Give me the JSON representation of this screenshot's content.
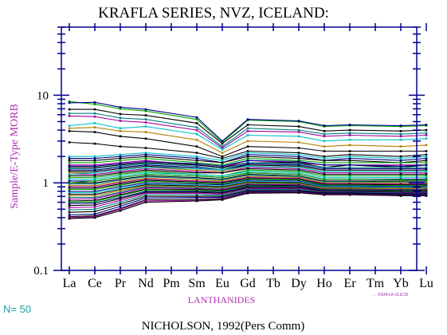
{
  "chart_data": {
    "type": "line",
    "title": "KRAFLA SERIES, NVZ, ICELAND:",
    "ylabel": "Sample/E-Type MORB",
    "xlabel": "LANTHANIDES",
    "yscale": "log",
    "ylim": [
      0.1,
      60
    ],
    "ytick_labels": [
      "0.1",
      "1",
      "10"
    ],
    "ytick_values": [
      0.1,
      1,
      10
    ],
    "categories": [
      "La",
      "Ce",
      "Pr",
      "Nd",
      "Pm",
      "Sm",
      "Eu",
      "Gd",
      "Tb",
      "Dy",
      "Ho",
      "Er",
      "Tm",
      "Yb",
      "Lu"
    ],
    "n_label": "N= 50",
    "source": "NICHOLSON, 1992(Pers Comm)",
    "legend_text": "← KRAFLA-ULECB",
    "colors": {
      "axis": "#00008b",
      "title": "#000000",
      "ylabel": "#b030b0",
      "xlabel": "#b030b0",
      "tick_text": "#000000",
      "n_label": "#20a0a0",
      "legend": "#b030b0"
    },
    "series": [
      {
        "color": "#00a000",
        "values": [
          8.5,
          7.9,
          7.0,
          6.6,
          null,
          5.3,
          2.9,
          5.2,
          null,
          5.0,
          4.4,
          4.5,
          null,
          4.4,
          4.5
        ]
      },
      {
        "color": "#00008b",
        "values": [
          8.2,
          8.3,
          7.3,
          6.9,
          null,
          5.6,
          3.0,
          5.3,
          null,
          5.1,
          4.5,
          4.6,
          null,
          4.5,
          4.6
        ]
      },
      {
        "color": "#000000",
        "values": [
          6.9,
          6.9,
          6.1,
          5.9,
          null,
          4.8,
          2.8,
          4.6,
          null,
          4.4,
          3.9,
          4.0,
          null,
          3.9,
          4.0
        ]
      },
      {
        "color": "#008080",
        "values": [
          6.2,
          6.2,
          5.5,
          5.3,
          null,
          4.3,
          2.6,
          4.2,
          null,
          4.0,
          3.6,
          3.7,
          null,
          3.6,
          3.7
        ]
      },
      {
        "color": "#a000a0",
        "values": [
          5.8,
          5.7,
          5.1,
          4.9,
          null,
          4.0,
          2.5,
          3.9,
          null,
          3.8,
          3.4,
          3.5,
          null,
          3.4,
          3.5
        ]
      },
      {
        "color": "#00c0c0",
        "values": [
          4.5,
          4.8,
          4.2,
          4.4,
          null,
          3.6,
          2.4,
          3.5,
          null,
          3.4,
          3.0,
          3.1,
          null,
          3.1,
          3.2
        ]
      },
      {
        "color": "#b08000",
        "values": [
          4.2,
          4.3,
          3.9,
          3.8,
          null,
          3.1,
          2.2,
          3.0,
          null,
          2.9,
          2.6,
          2.7,
          null,
          2.6,
          2.7
        ]
      },
      {
        "color": "#000000",
        "values": [
          3.9,
          3.8,
          3.4,
          3.2,
          null,
          2.6,
          2.0,
          2.6,
          null,
          2.5,
          2.3,
          2.3,
          null,
          2.3,
          2.3
        ]
      },
      {
        "color": "#000000",
        "values": [
          2.9,
          2.8,
          2.6,
          2.5,
          null,
          2.2,
          1.9,
          2.3,
          null,
          2.2,
          2.0,
          2.1,
          null,
          2.0,
          2.1
        ]
      },
      {
        "color": "#00c0c0",
        "values": [
          2.0,
          2.0,
          2.1,
          2.2,
          null,
          2.0,
          1.8,
          2.2,
          null,
          2.1,
          1.9,
          2.0,
          null,
          1.9,
          2.0
        ]
      },
      {
        "color": "#00008b",
        "values": [
          1.9,
          1.9,
          2.0,
          2.1,
          null,
          1.9,
          1.7,
          2.1,
          null,
          2.0,
          1.8,
          1.9,
          null,
          1.8,
          1.9
        ]
      },
      {
        "color": "#000000",
        "values": [
          1.8,
          1.8,
          1.9,
          2.0,
          null,
          1.8,
          1.7,
          2.0,
          null,
          1.9,
          1.8,
          1.8,
          null,
          1.7,
          1.8
        ]
      },
      {
        "color": "#00a000",
        "values": [
          1.7,
          1.7,
          1.8,
          1.9,
          null,
          1.7,
          1.6,
          1.9,
          null,
          1.8,
          1.7,
          1.7,
          null,
          1.7,
          1.7
        ]
      },
      {
        "color": "#a000a0",
        "values": [
          1.6,
          1.6,
          1.7,
          1.8,
          null,
          1.6,
          1.5,
          1.8,
          null,
          1.7,
          1.6,
          1.6,
          null,
          1.6,
          1.6
        ]
      },
      {
        "color": "#000000",
        "values": [
          1.5,
          1.5,
          1.6,
          1.7,
          null,
          1.6,
          1.5,
          1.7,
          null,
          1.7,
          1.5,
          1.6,
          null,
          1.5,
          1.6
        ]
      },
      {
        "color": "#008080",
        "values": [
          1.45,
          1.45,
          1.55,
          1.65,
          null,
          1.55,
          1.45,
          1.7,
          null,
          1.65,
          1.5,
          1.5,
          null,
          1.5,
          1.5
        ]
      },
      {
        "color": "#00008b",
        "values": [
          1.4,
          1.4,
          1.5,
          1.6,
          null,
          1.5,
          1.4,
          1.65,
          null,
          1.6,
          1.45,
          1.45,
          null,
          1.45,
          1.45
        ]
      },
      {
        "color": "#000000",
        "values": [
          1.35,
          1.35,
          1.45,
          1.55,
          null,
          1.45,
          1.4,
          1.6,
          null,
          1.55,
          1.4,
          1.4,
          null,
          1.4,
          1.4
        ]
      },
      {
        "color": "#b08000",
        "values": [
          1.3,
          1.3,
          1.4,
          1.5,
          null,
          1.4,
          1.35,
          1.55,
          null,
          1.5,
          1.35,
          1.35,
          null,
          1.35,
          1.35
        ]
      },
      {
        "color": "#a000a0",
        "values": [
          1.25,
          1.25,
          1.35,
          1.45,
          null,
          1.35,
          1.3,
          1.5,
          null,
          1.45,
          1.3,
          1.3,
          null,
          1.3,
          1.3
        ]
      },
      {
        "color": "#000000",
        "values": [
          1.2,
          1.2,
          1.3,
          1.4,
          null,
          1.3,
          1.3,
          1.45,
          null,
          1.4,
          1.25,
          1.25,
          null,
          1.25,
          1.25
        ]
      },
      {
        "color": "#00a000",
        "values": [
          1.15,
          1.15,
          1.25,
          1.35,
          null,
          1.25,
          1.2,
          1.4,
          null,
          1.35,
          1.2,
          1.2,
          null,
          1.2,
          1.2
        ]
      },
      {
        "color": "#00c0c0",
        "values": [
          1.1,
          1.1,
          1.2,
          1.3,
          null,
          1.25,
          1.2,
          1.35,
          null,
          1.3,
          1.15,
          1.15,
          null,
          1.15,
          1.15
        ]
      },
      {
        "color": "#00008b",
        "values": [
          1.05,
          1.05,
          1.15,
          1.25,
          null,
          1.2,
          1.15,
          1.3,
          null,
          1.25,
          1.1,
          1.1,
          null,
          1.1,
          1.1
        ]
      },
      {
        "color": "#000000",
        "values": [
          1.0,
          1.0,
          1.1,
          1.2,
          null,
          1.15,
          1.1,
          1.25,
          null,
          1.2,
          1.05,
          1.05,
          null,
          1.05,
          1.05
        ]
      },
      {
        "color": "#008080",
        "values": [
          0.97,
          0.97,
          1.07,
          1.17,
          null,
          1.12,
          1.08,
          1.22,
          null,
          1.18,
          1.03,
          1.03,
          null,
          1.02,
          1.02
        ]
      },
      {
        "color": "#b08000",
        "values": [
          0.93,
          0.93,
          1.03,
          1.13,
          null,
          1.08,
          1.05,
          1.18,
          null,
          1.15,
          1.0,
          1.0,
          null,
          1.0,
          1.0
        ]
      },
      {
        "color": "#a000a0",
        "values": [
          0.9,
          0.9,
          1.0,
          1.1,
          null,
          1.05,
          1.02,
          1.15,
          null,
          1.12,
          0.98,
          0.98,
          null,
          0.97,
          0.97
        ]
      },
      {
        "color": "#000000",
        "values": [
          0.87,
          0.87,
          0.97,
          1.07,
          null,
          1.02,
          1.0,
          1.12,
          null,
          1.1,
          0.96,
          0.96,
          null,
          0.95,
          0.95
        ]
      },
      {
        "color": "#00a000",
        "values": [
          0.84,
          0.84,
          0.94,
          1.04,
          null,
          1.0,
          0.97,
          1.1,
          null,
          1.08,
          0.94,
          0.94,
          null,
          0.93,
          0.93
        ]
      },
      {
        "color": "#00008b",
        "values": [
          0.8,
          0.8,
          0.9,
          1.0,
          null,
          0.97,
          0.95,
          1.07,
          null,
          1.05,
          0.92,
          0.92,
          null,
          0.91,
          0.91
        ]
      },
      {
        "color": "#00c0c0",
        "values": [
          0.77,
          0.77,
          0.87,
          0.97,
          null,
          0.94,
          0.92,
          1.04,
          null,
          1.02,
          0.9,
          0.9,
          null,
          0.89,
          0.89
        ]
      },
      {
        "color": "#000000",
        "values": [
          0.74,
          0.74,
          0.84,
          0.95,
          null,
          0.92,
          0.9,
          1.02,
          null,
          1.0,
          0.88,
          0.88,
          null,
          0.87,
          0.87
        ]
      },
      {
        "color": "#b08000",
        "values": [
          0.71,
          0.71,
          0.81,
          0.92,
          null,
          0.9,
          0.88,
          1.0,
          null,
          0.98,
          0.87,
          0.87,
          null,
          0.86,
          0.86
        ]
      },
      {
        "color": "#008080",
        "values": [
          0.68,
          0.68,
          0.78,
          0.9,
          null,
          0.88,
          0.86,
          0.98,
          null,
          0.96,
          0.85,
          0.85,
          null,
          0.84,
          0.84
        ]
      },
      {
        "color": "#a000a0",
        "values": [
          0.65,
          0.66,
          0.76,
          0.88,
          null,
          0.86,
          0.84,
          0.96,
          null,
          0.95,
          0.84,
          0.84,
          null,
          0.83,
          0.83
        ]
      },
      {
        "color": "#000000",
        "values": [
          0.62,
          0.63,
          0.73,
          0.85,
          null,
          0.84,
          0.82,
          0.94,
          null,
          0.93,
          0.83,
          0.83,
          null,
          0.82,
          0.82
        ]
      },
      {
        "color": "#00a000",
        "values": [
          0.6,
          0.61,
          0.71,
          0.83,
          null,
          0.82,
          0.8,
          0.92,
          null,
          0.91,
          0.82,
          0.82,
          null,
          0.8,
          0.8
        ]
      },
      {
        "color": "#00008b",
        "values": [
          0.58,
          0.59,
          0.68,
          0.8,
          null,
          0.8,
          0.78,
          0.9,
          null,
          0.9,
          0.81,
          0.81,
          null,
          0.79,
          0.79
        ]
      },
      {
        "color": "#00008b",
        "values": [
          1.55,
          1.55,
          1.65,
          1.75,
          null,
          1.65,
          1.55,
          1.8,
          null,
          1.75,
          1.6,
          1.6,
          null,
          1.55,
          1.6
        ]
      },
      {
        "color": "#00c0c0",
        "values": [
          1.25,
          1.3,
          1.4,
          1.5,
          null,
          1.45,
          1.4,
          1.55,
          null,
          1.5,
          1.35,
          1.35,
          null,
          1.35,
          1.35
        ]
      },
      {
        "color": "#00a000",
        "values": [
          1.0,
          1.05,
          1.15,
          1.25,
          null,
          1.2,
          1.15,
          1.3,
          null,
          1.25,
          1.1,
          1.1,
          null,
          1.08,
          1.08
        ]
      },
      {
        "color": "#000000",
        "values": [
          0.55,
          0.56,
          0.66,
          0.78,
          null,
          0.78,
          0.76,
          0.88,
          null,
          0.88,
          0.8,
          0.8,
          null,
          0.78,
          0.78
        ]
      },
      {
        "color": "#a000a0",
        "values": [
          0.52,
          0.53,
          0.63,
          0.76,
          null,
          0.76,
          0.74,
          0.86,
          null,
          0.86,
          0.79,
          0.79,
          null,
          0.77,
          0.77
        ]
      },
      {
        "color": "#008080",
        "values": [
          0.49,
          0.5,
          0.6,
          0.73,
          null,
          0.73,
          0.72,
          0.84,
          null,
          0.84,
          0.78,
          0.78,
          null,
          0.76,
          0.76
        ]
      },
      {
        "color": "#000000",
        "values": [
          0.46,
          0.47,
          0.57,
          0.7,
          null,
          0.7,
          0.7,
          0.82,
          null,
          0.82,
          0.77,
          0.77,
          null,
          0.75,
          0.75
        ]
      },
      {
        "color": "#00008b",
        "values": [
          0.43,
          0.44,
          0.54,
          0.67,
          null,
          0.68,
          0.68,
          0.8,
          null,
          0.8,
          0.76,
          0.76,
          null,
          0.74,
          0.74
        ]
      },
      {
        "color": "#000000",
        "values": [
          0.41,
          0.42,
          0.51,
          0.64,
          null,
          0.65,
          0.66,
          0.78,
          null,
          0.79,
          0.75,
          0.75,
          null,
          0.73,
          0.73
        ]
      },
      {
        "color": "#a000a0",
        "values": [
          0.4,
          0.41,
          0.5,
          0.62,
          null,
          0.63,
          0.65,
          0.77,
          null,
          0.78,
          0.74,
          0.74,
          null,
          0.72,
          0.72
        ]
      },
      {
        "color": "#000000",
        "values": [
          0.39,
          0.4,
          0.48,
          0.6,
          null,
          0.62,
          0.64,
          0.76,
          null,
          0.77,
          0.73,
          0.73,
          null,
          0.71,
          0.71
        ]
      }
    ]
  }
}
